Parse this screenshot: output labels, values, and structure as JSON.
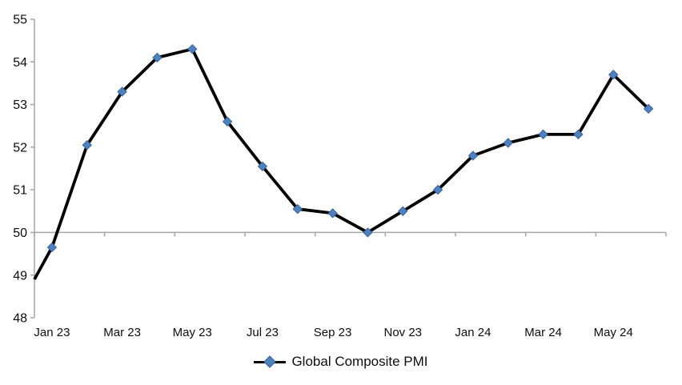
{
  "chart_data": {
    "type": "line",
    "title": "",
    "xlabel": "",
    "ylabel": "",
    "categories": [
      "Jan 23",
      "Feb 23",
      "Mar 23",
      "Apr 23",
      "May 23",
      "Jun 23",
      "Jul 23",
      "Aug 23",
      "Sep 23",
      "Oct 23",
      "Nov 23",
      "Dec 23",
      "Jan 24",
      "Feb 24",
      "Mar 24",
      "Apr 24",
      "May 24",
      "Jun 24"
    ],
    "series": [
      {
        "name": "Global Composite PMI",
        "values": [
          49.65,
          52.05,
          53.3,
          54.1,
          54.3,
          52.6,
          51.55,
          50.55,
          50.45,
          50.0,
          50.5,
          51.0,
          51.8,
          52.1,
          52.3,
          52.3,
          53.7,
          52.9
        ],
        "leadin_value_at_left_edge": 48.9
      }
    ],
    "x_tick_labels": [
      "Jan 23",
      "Mar 23",
      "May 23",
      "Jul 23",
      "Sep 23",
      "Nov 23",
      "Jan 24",
      "Mar 24",
      "May 24"
    ],
    "x_tick_label_every_n_categories": 2,
    "y_tick_labels": [
      "48",
      "49",
      "50",
      "51",
      "52",
      "53",
      "54",
      "55"
    ],
    "y_ticks": [
      48,
      49,
      50,
      51,
      52,
      53,
      54,
      55
    ],
    "ylim": [
      48,
      55
    ],
    "category_axis_crosses_at": 50,
    "grid": "off",
    "legend_position": "bottom-center",
    "colors": {
      "series_line": "#000000",
      "marker_fill": "#4F81BD",
      "marker_border": "#38639E",
      "axis_line": "#A6A6A6",
      "tick_label": "#0d0d0d"
    }
  }
}
